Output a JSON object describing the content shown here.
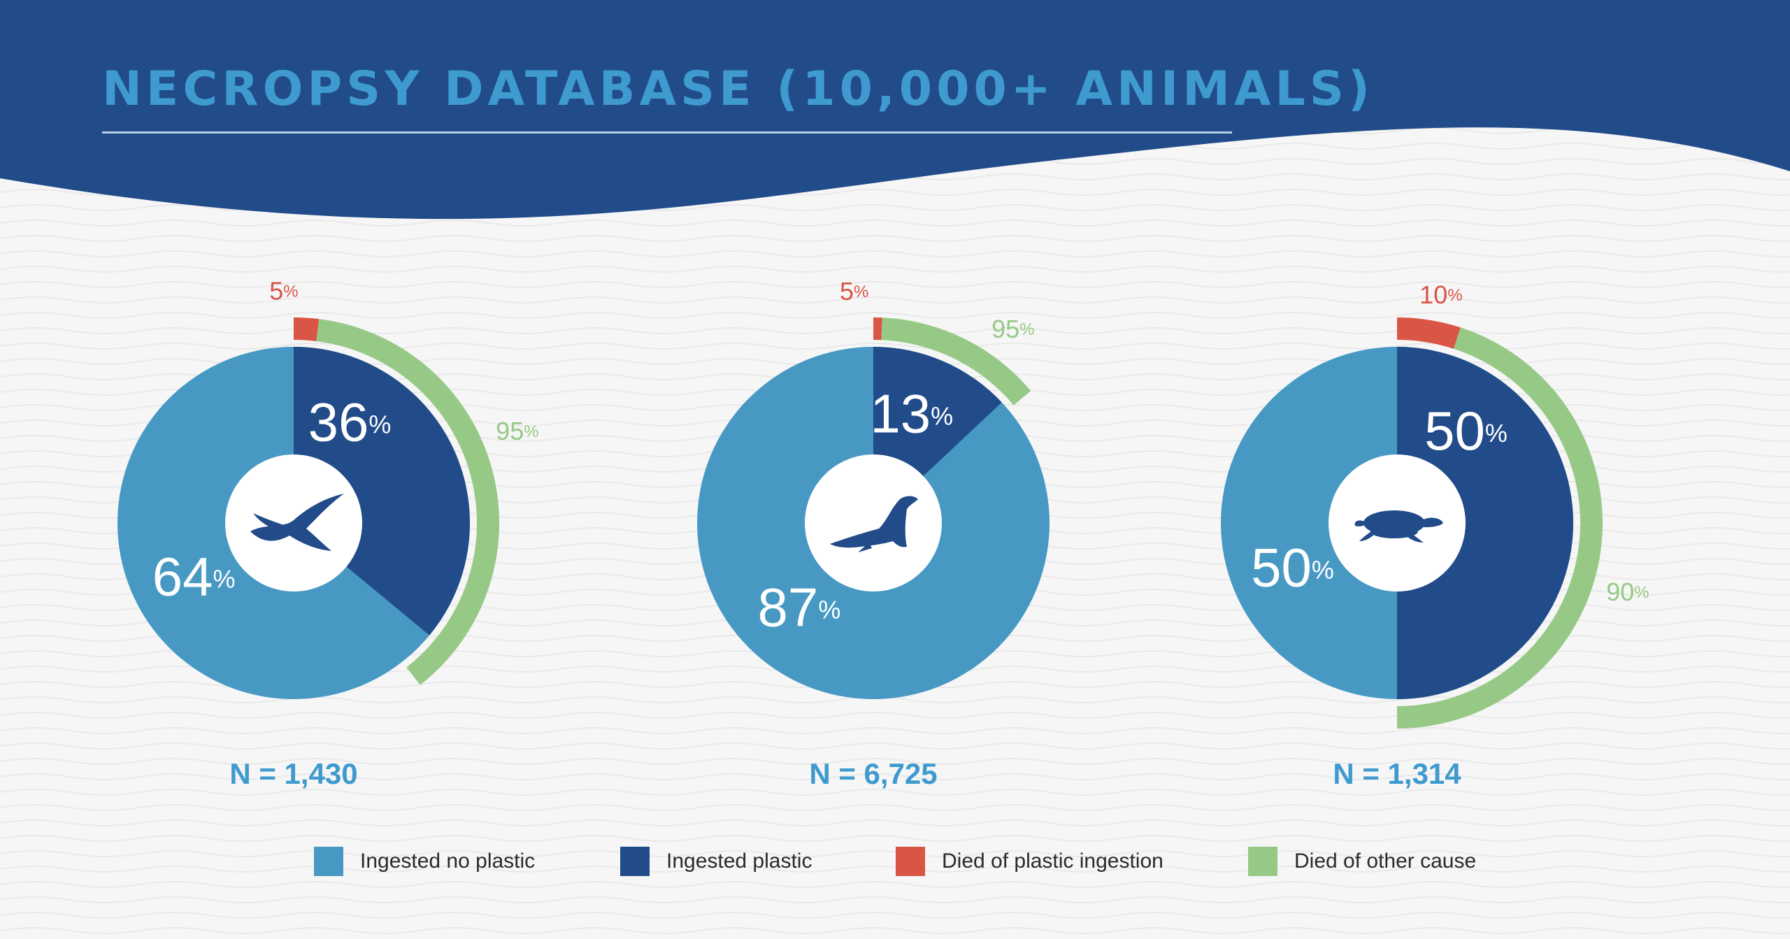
{
  "title": "NECROPSY DATABASE (10,000+ ANIMALS)",
  "colors": {
    "header": "#214b89",
    "ingested_no_plastic": "#4799c4",
    "ingested_plastic": "#214b89",
    "died_plastic": "#d95545",
    "died_other": "#97c986",
    "label_blue": "#3e9acf"
  },
  "legend": [
    {
      "label": "Ingested no plastic",
      "color": "#4799c4"
    },
    {
      "label": "Ingested plastic",
      "color": "#214b89"
    },
    {
      "label": "Died of plastic ingestion",
      "color": "#d95545"
    },
    {
      "label": "Died of other cause",
      "color": "#97c986"
    }
  ],
  "chart_data": [
    {
      "type": "pie",
      "icon": "seabird-icon",
      "n_label": "N = 1,430",
      "slices": [
        {
          "label": "Ingested plastic",
          "value": 36,
          "display": "36"
        },
        {
          "label": "Ingested no plastic",
          "value": 64,
          "display": "64"
        }
      ],
      "outer_ring": [
        {
          "label": "Died of plastic ingestion",
          "value": 5,
          "display": "5"
        },
        {
          "label": "Died of other cause",
          "value": 95,
          "display": "95"
        }
      ]
    },
    {
      "type": "pie",
      "icon": "seal-icon",
      "n_label": "N = 6,725",
      "slices": [
        {
          "label": "Ingested plastic",
          "value": 13,
          "display": "13"
        },
        {
          "label": "Ingested no plastic",
          "value": 87,
          "display": "87"
        }
      ],
      "outer_ring": [
        {
          "label": "Died of plastic ingestion",
          "value": 5,
          "display": "5"
        },
        {
          "label": "Died of other cause",
          "value": 95,
          "display": "95"
        }
      ]
    },
    {
      "type": "pie",
      "icon": "sea-turtle-icon",
      "n_label": "N = 1,314",
      "slices": [
        {
          "label": "Ingested plastic",
          "value": 50,
          "display": "50"
        },
        {
          "label": "Ingested no plastic",
          "value": 50,
          "display": "50"
        }
      ],
      "outer_ring": [
        {
          "label": "Died of plastic ingestion",
          "value": 10,
          "display": "10"
        },
        {
          "label": "Died of other cause",
          "value": 90,
          "display": "90"
        }
      ]
    }
  ]
}
